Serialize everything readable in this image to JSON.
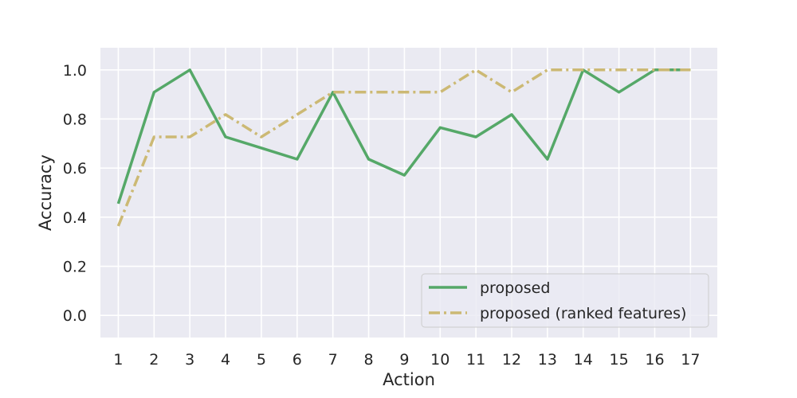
{
  "chart_data": {
    "type": "line",
    "xlabel": "Action",
    "ylabel": "Accuracy",
    "x": [
      1,
      2,
      3,
      4,
      5,
      6,
      7,
      8,
      9,
      10,
      11,
      12,
      13,
      14,
      15,
      16,
      17
    ],
    "xticks": [
      "1",
      "2",
      "3",
      "4",
      "5",
      "6",
      "7",
      "8",
      "9",
      "10",
      "11",
      "12",
      "13",
      "14",
      "15",
      "16",
      "17"
    ],
    "yticks": [
      "0.0",
      "0.2",
      "0.4",
      "0.6",
      "0.8",
      "1.0"
    ],
    "xlim": [
      0.5,
      17.75
    ],
    "ylim": [
      -0.09,
      1.09
    ],
    "grid": true,
    "legend_position": "lower right",
    "series": [
      {
        "name": "proposed",
        "color": "#55a868",
        "style": "solid",
        "values": [
          0.455,
          0.909,
          1.0,
          0.727,
          0.682,
          0.636,
          0.909,
          0.636,
          0.571,
          0.765,
          0.727,
          0.818,
          0.636,
          1.0,
          0.909,
          1.0,
          1.0
        ]
      },
      {
        "name": "proposed (ranked features)",
        "color": "#ccb974",
        "style": "dashdot",
        "values": [
          0.364,
          0.727,
          0.727,
          0.818,
          0.727,
          0.818,
          0.909,
          0.909,
          0.909,
          0.909,
          1.0,
          0.909,
          1.0,
          1.0,
          1.0,
          1.0,
          1.0
        ]
      }
    ]
  }
}
